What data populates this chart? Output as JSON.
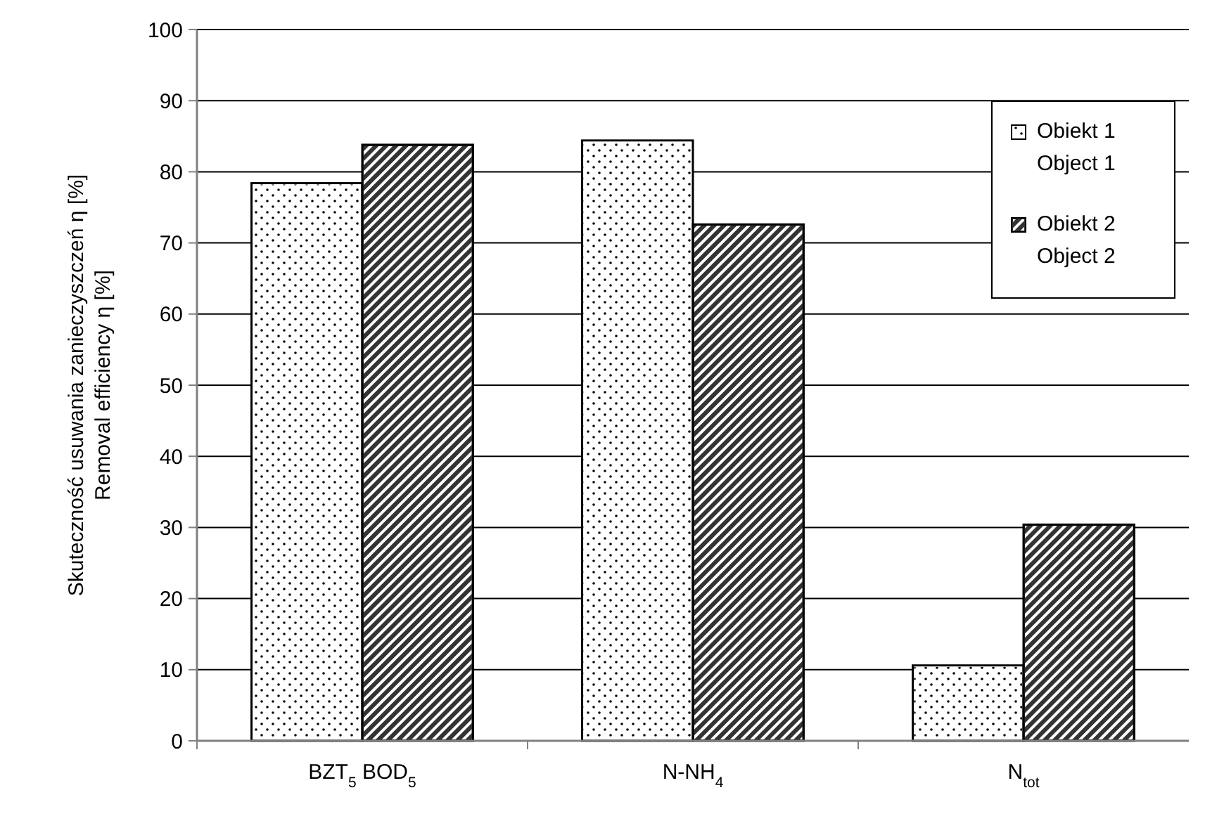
{
  "chart_data": {
    "type": "bar",
    "ylabel": "Skuteczność usuwania zanieczyszczeń η [%]\nRemoval efficiency η [%]",
    "categories": [
      "BZT$_{5}$  BOD$_{5}$",
      "N-NH$_{4}$",
      "N$_{tot}$"
    ],
    "series": [
      {
        "name": "Obiekt 1\nObject 1",
        "color": "#ffffff",
        "values": [
          78.4,
          84.4,
          10.6
        ]
      },
      {
        "name": "Obiekt 2\nObject 2",
        "color": "#333333",
        "values": [
          83.8,
          72.6,
          30.4
        ]
      }
    ],
    "ylim": [
      0,
      100
    ],
    "yticks": [
      0,
      10,
      20,
      30,
      40,
      50,
      60,
      70,
      80,
      90,
      100
    ],
    "grid": "y",
    "legend": "top right"
  }
}
